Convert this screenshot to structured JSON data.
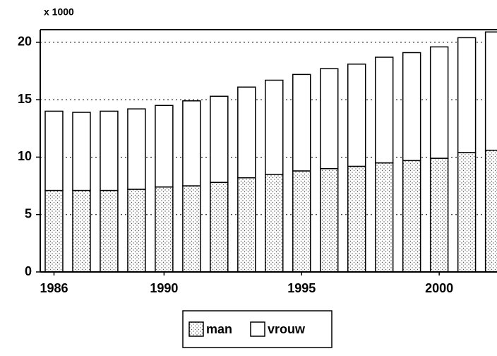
{
  "chart_data": {
    "type": "stacked_bar",
    "y_axis_label": "x 1000",
    "x": [
      1986,
      1987,
      1988,
      1989,
      1990,
      1991,
      1992,
      1993,
      1994,
      1995,
      1996,
      1997,
      1998,
      1999,
      2000,
      2001,
      2002
    ],
    "series": [
      {
        "name": "man",
        "color": "#ffffff",
        "pattern": "dots",
        "values": [
          7.1,
          7.1,
          7.1,
          7.2,
          7.4,
          7.5,
          7.8,
          8.2,
          8.5,
          8.8,
          9.0,
          9.2,
          9.5,
          9.7,
          9.9,
          10.4,
          10.6
        ]
      },
      {
        "name": "vrouw",
        "color": "#ffffff",
        "values": [
          6.9,
          6.8,
          6.9,
          7.0,
          7.1,
          7.4,
          7.5,
          7.9,
          8.2,
          8.4,
          8.7,
          8.9,
          9.2,
          9.4,
          9.7,
          10.0,
          10.3
        ]
      }
    ],
    "xlim": [
      1985.5,
      2002.1
    ],
    "xticks": [
      1986,
      1990,
      1995,
      2000
    ],
    "ylim": [
      0,
      21.1
    ],
    "yticks": [
      0,
      5,
      10,
      15,
      20
    ],
    "grid": true,
    "legend": "bottom"
  }
}
